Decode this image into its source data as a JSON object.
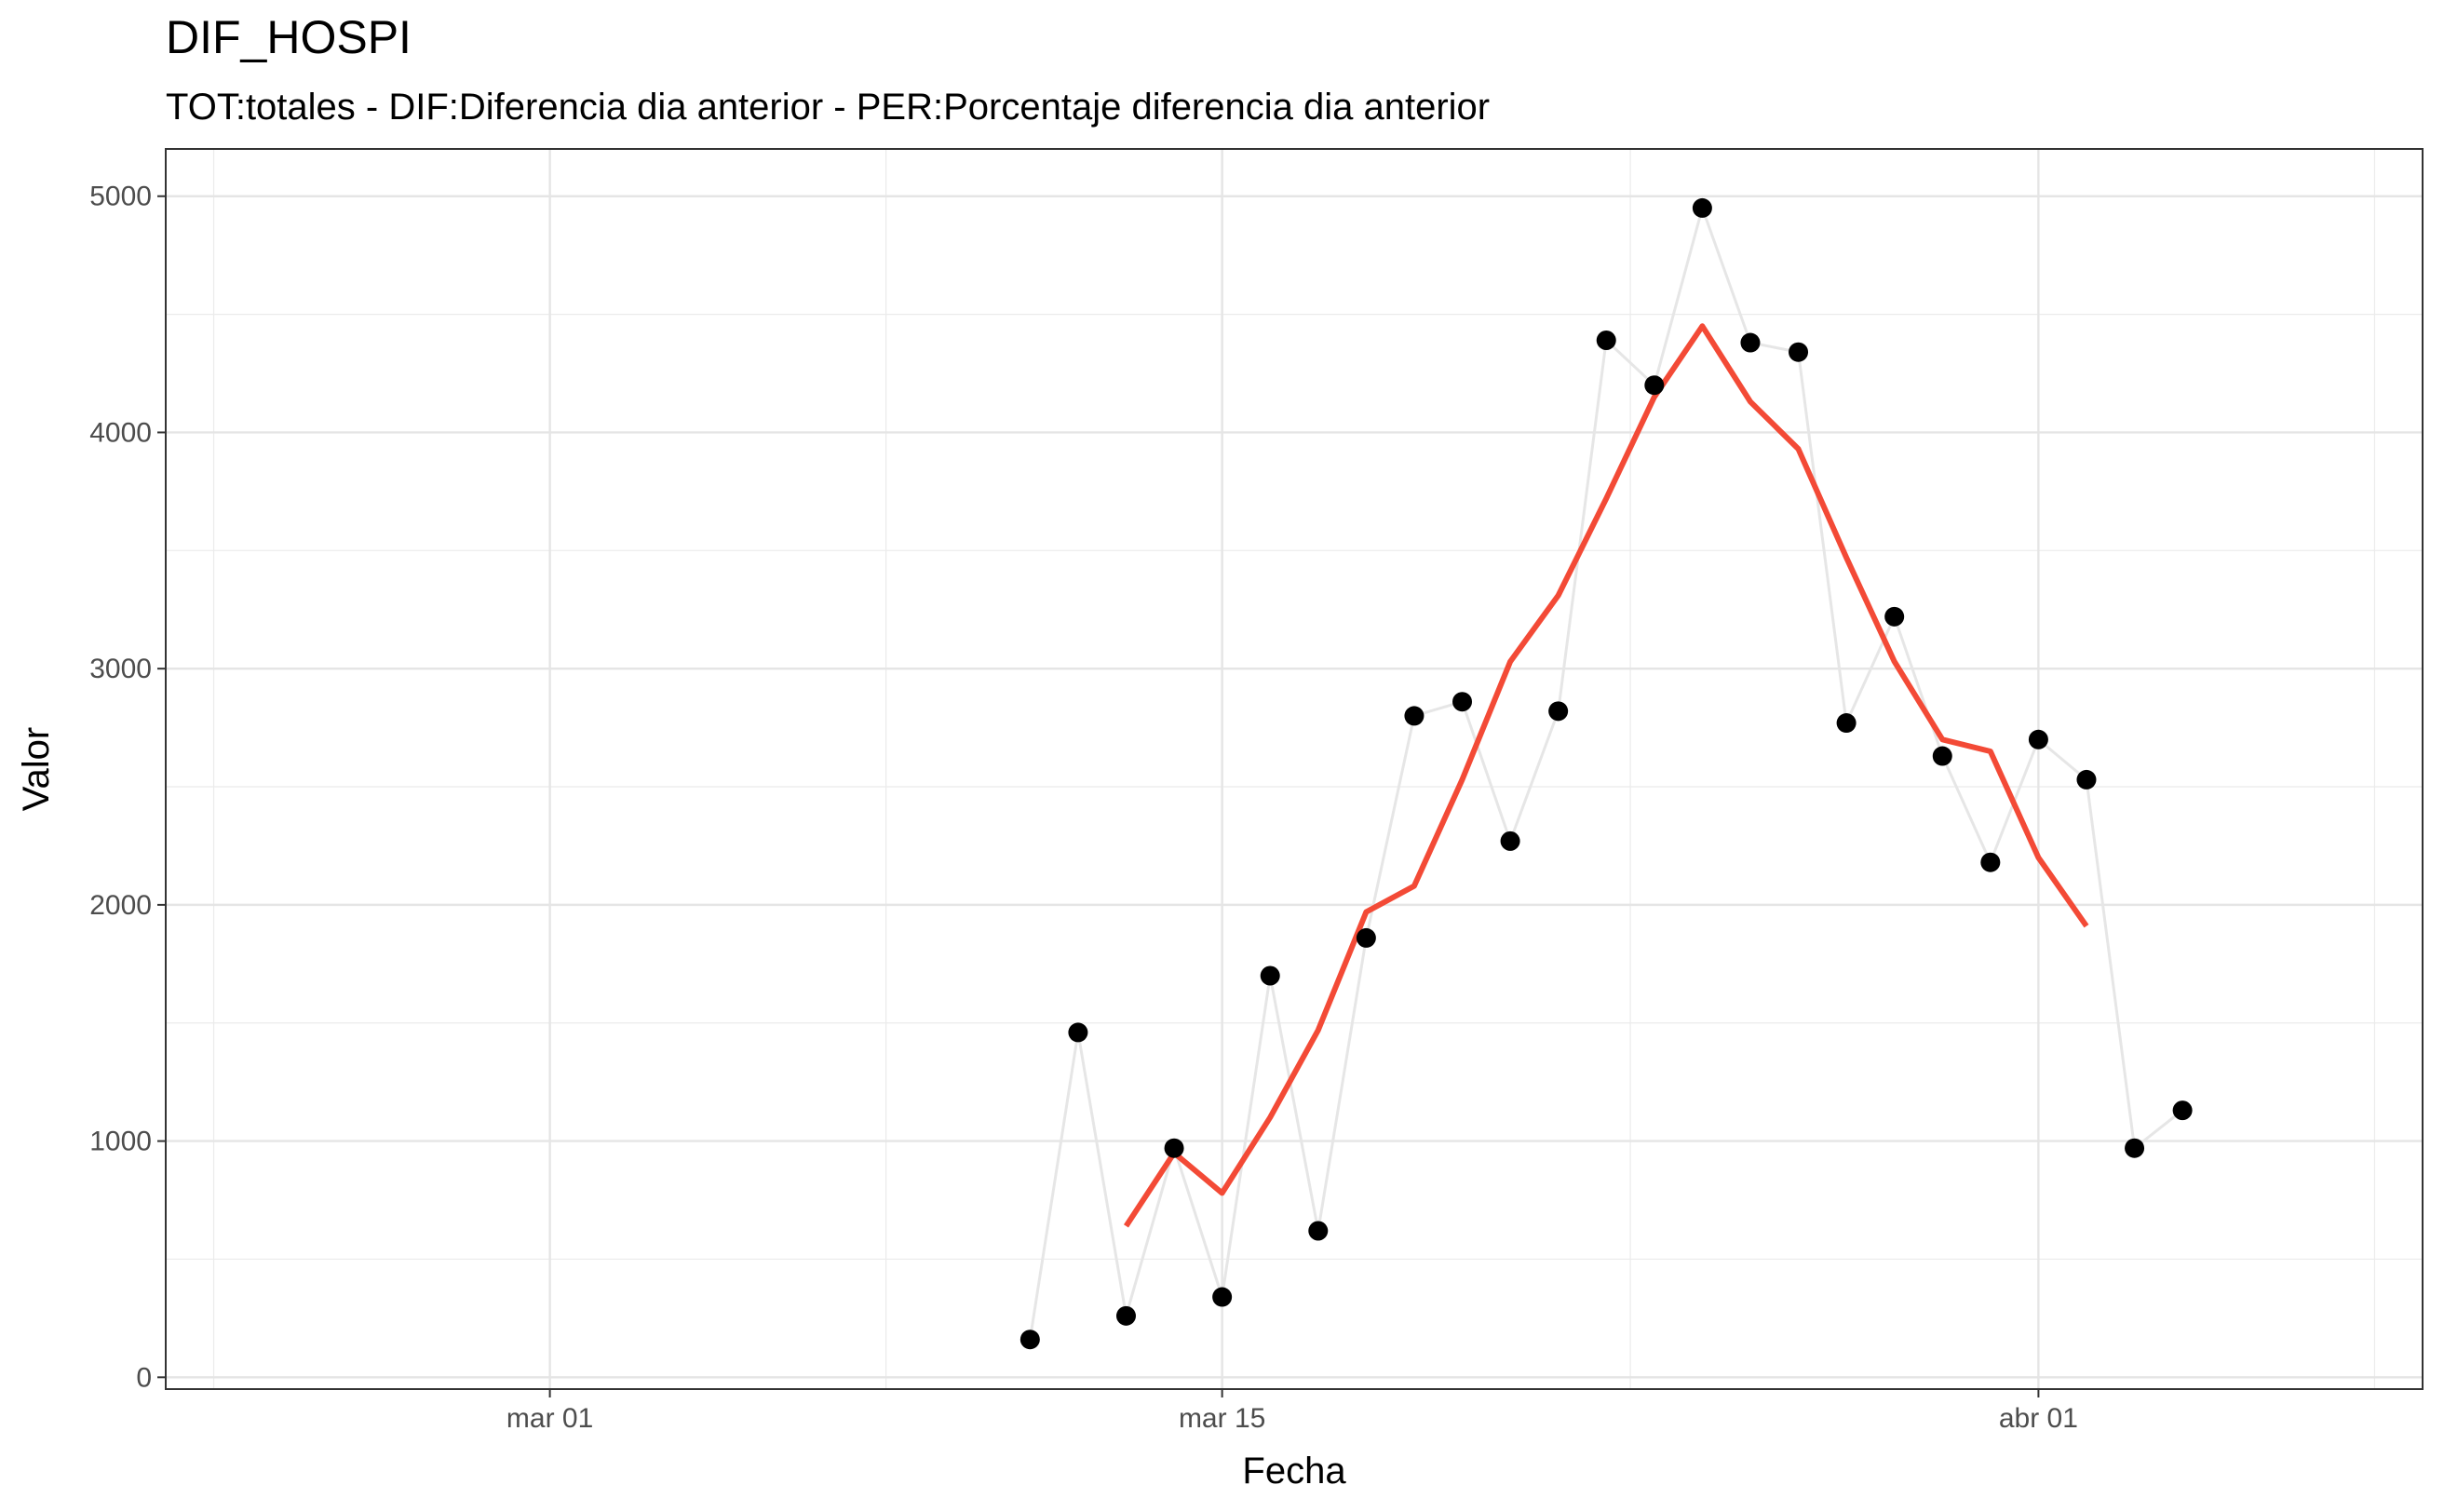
{
  "chart_data": {
    "type": "line",
    "title": "DIF_HOSPI",
    "subtitle": "TOT:totales - DIF:Diferencia dia anterior - PER:Porcentaje diferencia dia anterior",
    "xlabel": "Fecha",
    "ylabel": "Valor",
    "x_axis": {
      "type": "date",
      "ticks": [
        {
          "date": "2020-03-01",
          "label": "mar 01"
        },
        {
          "date": "2020-03-15",
          "label": "mar 15"
        },
        {
          "date": "2020-04-01",
          "label": "abr 01"
        }
      ],
      "xlim": [
        "2020-02-22",
        "2020-04-09"
      ]
    },
    "y_axis": {
      "ticks": [
        0,
        1000,
        2000,
        3000,
        4000,
        5000
      ],
      "ylim": [
        -50,
        5200
      ]
    },
    "grid": true,
    "series": [
      {
        "type": "points_line",
        "color": "#000000",
        "line_color": "#e6e6e6",
        "x": [
          "2020-03-11",
          "2020-03-12",
          "2020-03-13",
          "2020-03-14",
          "2020-03-15",
          "2020-03-16",
          "2020-03-17",
          "2020-03-18",
          "2020-03-19",
          "2020-03-20",
          "2020-03-21",
          "2020-03-22",
          "2020-03-23",
          "2020-03-24",
          "2020-03-25",
          "2020-03-26",
          "2020-03-27",
          "2020-03-28",
          "2020-03-29",
          "2020-03-30",
          "2020-03-31",
          "2020-04-01",
          "2020-04-02",
          "2020-04-03",
          "2020-04-04"
        ],
        "y": [
          160,
          1460,
          260,
          970,
          340,
          1700,
          620,
          1860,
          2800,
          2860,
          2270,
          2820,
          4390,
          4200,
          4950,
          4380,
          4340,
          2770,
          3220,
          2630,
          2180,
          2700,
          2530,
          970,
          1130
        ]
      },
      {
        "type": "line",
        "color": "#f34a36",
        "x": [
          "2020-03-13",
          "2020-03-14",
          "2020-03-15",
          "2020-03-16",
          "2020-03-17",
          "2020-03-18",
          "2020-03-19",
          "2020-03-20",
          "2020-03-21",
          "2020-03-22",
          "2020-03-23",
          "2020-03-24",
          "2020-03-25",
          "2020-03-26",
          "2020-03-27",
          "2020-03-28",
          "2020-03-29",
          "2020-03-30",
          "2020-03-31",
          "2020-04-01",
          "2020-04-02"
        ],
        "y": [
          640,
          950,
          780,
          1100,
          1470,
          1970,
          2080,
          2530,
          3030,
          3310,
          3720,
          4150,
          4450,
          4130,
          3930,
          3470,
          3030,
          2700,
          2650,
          2200,
          1910
        ]
      }
    ]
  }
}
